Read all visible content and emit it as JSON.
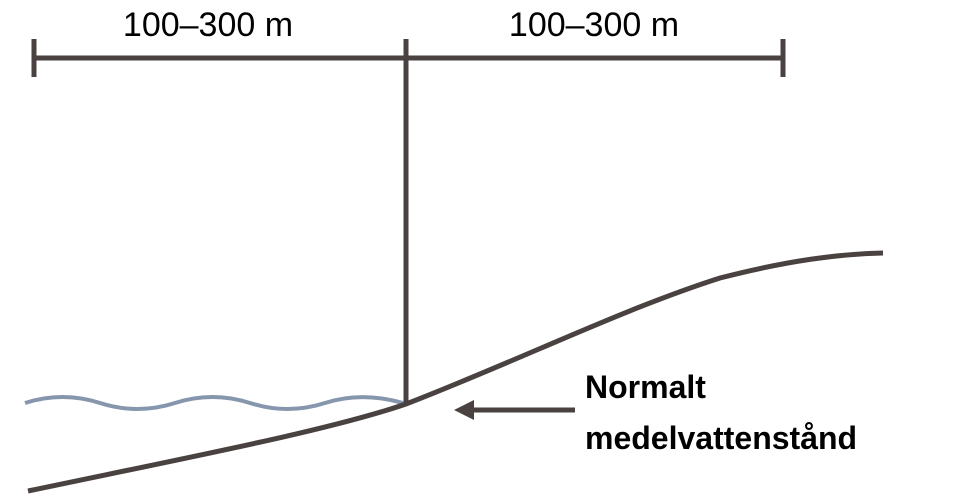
{
  "diagram": {
    "left_span_label": "100–300 m",
    "right_span_label": "100–300 m",
    "callout": {
      "line1": "Normalt",
      "line2": "medelvattenstånd"
    }
  },
  "colors": {
    "line": "#4a4240",
    "water": "#8596ad",
    "text": "#000000"
  }
}
